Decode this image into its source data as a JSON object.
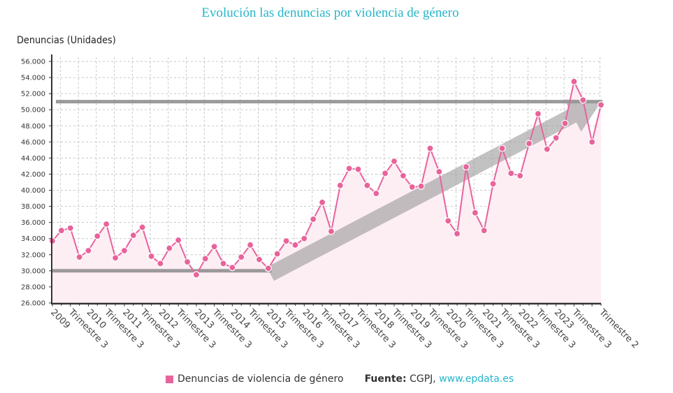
{
  "header": {
    "title": "Evolución las denuncias por violencia de género"
  },
  "legend": {
    "series_label": "Denuncias de violencia de género",
    "source_label": "Fuente:",
    "source_text": "CGPJ,",
    "source_link": "www.epdata.es"
  },
  "colors": {
    "title": "#26b5c9",
    "series": "#e8639c",
    "area_fill": "#fdeef4",
    "overlay": "#8a8a8a",
    "grid": "#c8c8c8",
    "axis": "#333333"
  },
  "chart_data": {
    "type": "area",
    "title": "Evolución las denuncias por violencia de género",
    "ylabel": "Denuncias (Unidades)",
    "xlabel": "",
    "ylim": [
      26000,
      56000
    ],
    "yticks": [
      26000,
      28000,
      30000,
      32000,
      34000,
      36000,
      38000,
      40000,
      42000,
      44000,
      46000,
      48000,
      50000,
      52000,
      54000,
      56000
    ],
    "ytick_labels": [
      "26.000",
      "28.000",
      "30.000",
      "32.000",
      "34.000",
      "36.000",
      "38.000",
      "40.000",
      "42.000",
      "44.000",
      "46.000",
      "48.000",
      "50.000",
      "52.000",
      "54.000",
      "56.000"
    ],
    "grid": true,
    "legend_position": "bottom",
    "x_tick_labels": [
      {
        "index": 0,
        "label": "2009"
      },
      {
        "index": 2,
        "label": "Trimestre 3"
      },
      {
        "index": 4,
        "label": "2010"
      },
      {
        "index": 6,
        "label": "Trimestre 3"
      },
      {
        "index": 8,
        "label": "2011"
      },
      {
        "index": 10,
        "label": "Trimestre 3"
      },
      {
        "index": 12,
        "label": "2012"
      },
      {
        "index": 14,
        "label": "Trimestre 3"
      },
      {
        "index": 16,
        "label": "2013"
      },
      {
        "index": 18,
        "label": "Trimestre 3"
      },
      {
        "index": 20,
        "label": "2014"
      },
      {
        "index": 22,
        "label": "Trimestre 3"
      },
      {
        "index": 24,
        "label": "2015"
      },
      {
        "index": 26,
        "label": "Trimestre 3"
      },
      {
        "index": 28,
        "label": "2016"
      },
      {
        "index": 30,
        "label": "Trimestre 3"
      },
      {
        "index": 32,
        "label": "2017"
      },
      {
        "index": 34,
        "label": "Trimestre 3"
      },
      {
        "index": 36,
        "label": "2018"
      },
      {
        "index": 38,
        "label": "Trimestre 3"
      },
      {
        "index": 40,
        "label": "2019"
      },
      {
        "index": 42,
        "label": "Trimestre 3"
      },
      {
        "index": 44,
        "label": "2020"
      },
      {
        "index": 46,
        "label": "Trimestre 3"
      },
      {
        "index": 48,
        "label": "2021"
      },
      {
        "index": 50,
        "label": "Trimestre 3"
      },
      {
        "index": 52,
        "label": "2022"
      },
      {
        "index": 54,
        "label": "Trimestre 3"
      },
      {
        "index": 56,
        "label": "2023"
      },
      {
        "index": 58,
        "label": "Trimestre 3"
      },
      {
        "index": 61,
        "label": "Trimestre 2"
      }
    ],
    "x": [
      "2009 T1",
      "2009 T2",
      "2009 T3",
      "2009 T4",
      "2010 T1",
      "2010 T2",
      "2010 T3",
      "2010 T4",
      "2011 T1",
      "2011 T2",
      "2011 T3",
      "2011 T4",
      "2012 T1",
      "2012 T2",
      "2012 T3",
      "2012 T4",
      "2013 T1",
      "2013 T2",
      "2013 T3",
      "2013 T4",
      "2014 T1",
      "2014 T2",
      "2014 T3",
      "2014 T4",
      "2015 T1",
      "2015 T2",
      "2015 T3",
      "2015 T4",
      "2016 T1",
      "2016 T2",
      "2016 T3",
      "2016 T4",
      "2017 T1",
      "2017 T2",
      "2017 T3",
      "2017 T4",
      "2018 T1",
      "2018 T2",
      "2018 T3",
      "2018 T4",
      "2019 T1",
      "2019 T2",
      "2019 T3",
      "2019 T4",
      "2020 T1",
      "2020 T2",
      "2020 T3",
      "2020 T4",
      "2021 T1",
      "2021 T2",
      "2021 T3",
      "2021 T4",
      "2022 T1",
      "2022 T2",
      "2022 T3",
      "2022 T4",
      "2023 T1",
      "2023 T2",
      "2023 T3",
      "2023 T4",
      "2024 T1",
      "2024 T2"
    ],
    "series": [
      {
        "name": "Denuncias de violencia de género",
        "values": [
          33700,
          35000,
          35300,
          31700,
          32500,
          34300,
          35800,
          31600,
          32500,
          34400,
          35400,
          31800,
          30900,
          32800,
          33800,
          31100,
          29500,
          31500,
          33000,
          30900,
          30400,
          31700,
          33200,
          31400,
          30300,
          32100,
          33700,
          33200,
          34000,
          36400,
          38500,
          34900,
          40600,
          42700,
          42600,
          40600,
          39600,
          42100,
          43600,
          41800,
          40400,
          40500,
          45200,
          42300,
          36200,
          34600,
          42900,
          37200,
          35000,
          40800,
          45200,
          42100,
          41800,
          45800,
          49500,
          45100,
          46500,
          48300,
          53500,
          51200,
          46000,
          50600
        ]
      }
    ],
    "annotations": [
      {
        "type": "hline",
        "y": 30000,
        "from_index": 0,
        "to_index": 24,
        "label": ""
      },
      {
        "type": "hline",
        "y": 51000,
        "from_index": 0,
        "to_index": 61,
        "label": ""
      },
      {
        "type": "arrow",
        "from": {
          "index": 24,
          "y": 29600
        },
        "to": {
          "index": 61,
          "y": 51200
        },
        "label": ""
      }
    ]
  }
}
